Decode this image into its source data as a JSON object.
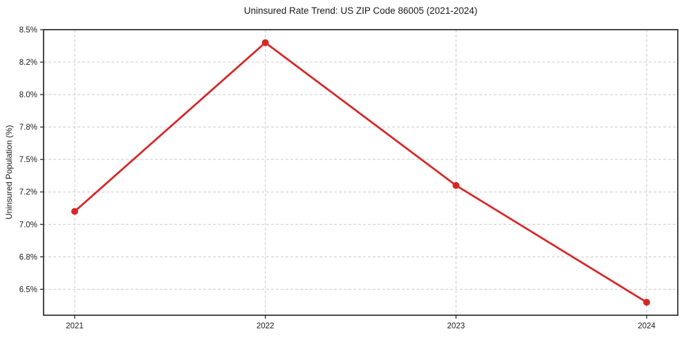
{
  "chart_data": {
    "type": "line",
    "title": "Uninsured Rate Trend: US ZIP Code 86005 (2021-2024)",
    "xlabel": "",
    "ylabel": "Uninsured Population (%)",
    "categories": [
      "2021",
      "2022",
      "2023",
      "2024"
    ],
    "values": [
      7.1,
      8.4,
      7.3,
      6.4
    ],
    "ylim": [
      6.3,
      8.5
    ],
    "yticks": [
      {
        "value": 8.5,
        "label": "8.5%"
      },
      {
        "value": 8.25,
        "label": "8.2%"
      },
      {
        "value": 8.0,
        "label": "8.0%"
      },
      {
        "value": 7.75,
        "label": "7.8%"
      },
      {
        "value": 7.5,
        "label": "7.5%"
      },
      {
        "value": 7.25,
        "label": "7.2%"
      },
      {
        "value": 7.0,
        "label": "7.0%"
      },
      {
        "value": 6.75,
        "label": "6.8%"
      },
      {
        "value": 6.5,
        "label": "6.5%"
      }
    ],
    "grid": true,
    "grid_style": "dashed",
    "legend": false,
    "marker": "circle",
    "colors": {
      "line": "#d62728",
      "marker": "#d62728",
      "grid": "#c9c9c9",
      "spine": "#1a1a1a",
      "text": "#1a1a1a",
      "background": "#ffffff"
    }
  }
}
